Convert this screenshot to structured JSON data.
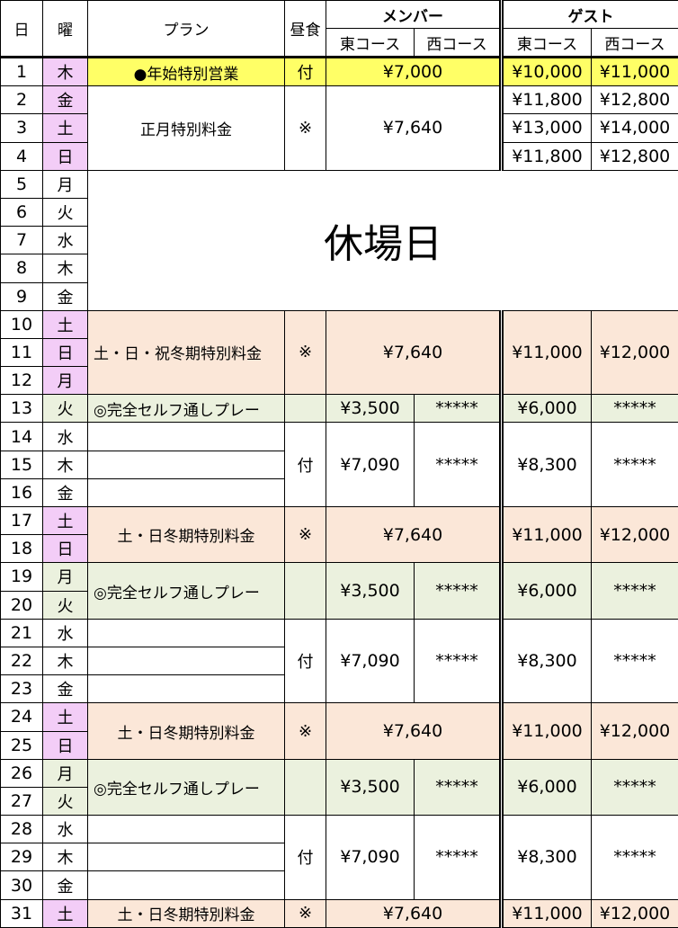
{
  "header": {
    "day": "日",
    "weekday": "曜",
    "plan": "プラン",
    "lunch": "昼食",
    "member": "メンバー",
    "guest": "ゲスト",
    "east": "東コース",
    "west": "西コース"
  },
  "colors": {
    "yellow": "#ffff66",
    "peach": "#fbe7d8",
    "green": "#ebf1de",
    "lavender": "#f3cdf7"
  },
  "days": [
    {
      "d": "1",
      "w": "木",
      "bg": "lav"
    },
    {
      "d": "2",
      "w": "金",
      "bg": "lav"
    },
    {
      "d": "3",
      "w": "土",
      "bg": "lav"
    },
    {
      "d": "4",
      "w": "日",
      "bg": "lav"
    },
    {
      "d": "5",
      "w": "月",
      "bg": "wht"
    },
    {
      "d": "6",
      "w": "火",
      "bg": "wht"
    },
    {
      "d": "7",
      "w": "水",
      "bg": "wht"
    },
    {
      "d": "8",
      "w": "木",
      "bg": "wht"
    },
    {
      "d": "9",
      "w": "金",
      "bg": "wht"
    },
    {
      "d": "10",
      "w": "土",
      "bg": "lav"
    },
    {
      "d": "11",
      "w": "日",
      "bg": "lav"
    },
    {
      "d": "12",
      "w": "月",
      "bg": "lav"
    },
    {
      "d": "13",
      "w": "火",
      "bg": "grn"
    },
    {
      "d": "14",
      "w": "水",
      "bg": "wht"
    },
    {
      "d": "15",
      "w": "木",
      "bg": "wht"
    },
    {
      "d": "16",
      "w": "金",
      "bg": "wht"
    },
    {
      "d": "17",
      "w": "土",
      "bg": "lav"
    },
    {
      "d": "18",
      "w": "日",
      "bg": "lav"
    },
    {
      "d": "19",
      "w": "月",
      "bg": "grn"
    },
    {
      "d": "20",
      "w": "火",
      "bg": "grn"
    },
    {
      "d": "21",
      "w": "水",
      "bg": "wht"
    },
    {
      "d": "22",
      "w": "木",
      "bg": "wht"
    },
    {
      "d": "23",
      "w": "金",
      "bg": "wht"
    },
    {
      "d": "24",
      "w": "土",
      "bg": "lav"
    },
    {
      "d": "25",
      "w": "日",
      "bg": "lav"
    },
    {
      "d": "26",
      "w": "月",
      "bg": "grn"
    },
    {
      "d": "27",
      "w": "火",
      "bg": "grn"
    },
    {
      "d": "28",
      "w": "水",
      "bg": "wht"
    },
    {
      "d": "29",
      "w": "木",
      "bg": "wht"
    },
    {
      "d": "30",
      "w": "金",
      "bg": "wht"
    },
    {
      "d": "31",
      "w": "土",
      "bg": "lav"
    }
  ],
  "segments": [
    {
      "type": "special",
      "span": 1,
      "bg": "yel",
      "plan": "●年始特別営業",
      "lunch": "付",
      "member": "¥7,000",
      "guest": [
        [
          "¥10,000",
          "¥11,000"
        ]
      ]
    },
    {
      "type": "special",
      "span": 3,
      "bg": "wht",
      "plan": "正月特別料金",
      "lunch": "※",
      "member": "¥7,640",
      "guest": [
        [
          "¥11,800",
          "¥12,800"
        ],
        [
          "¥13,000",
          "¥14,000"
        ],
        [
          "¥11,800",
          "¥12,800"
        ]
      ]
    },
    {
      "type": "closed",
      "span": 5,
      "label": "休場日"
    },
    {
      "type": "weekend",
      "span": 3,
      "bg": "pea",
      "plan": "土・日・祝冬期特別料金",
      "lunch": "※",
      "member": "¥7,640",
      "guest_east": "¥11,000",
      "guest_west": "¥12,000"
    },
    {
      "type": "self",
      "span": 1,
      "bg": "grn",
      "plan": "◎完全セルフ通しプレー",
      "lunch": "",
      "member_east": "¥3,500",
      "member_west": "*****",
      "guest_east": "¥6,000",
      "guest_west": "*****"
    },
    {
      "type": "weekday",
      "span": 3,
      "bg": "wht",
      "lunch": "付",
      "member_east": "¥7,090",
      "member_west": "*****",
      "guest_east": "¥8,300",
      "guest_west": "*****"
    },
    {
      "type": "weekend",
      "span": 2,
      "bg": "pea",
      "plan": "土・日冬期特別料金",
      "lunch": "※",
      "member": "¥7,640",
      "guest_east": "¥11,000",
      "guest_west": "¥12,000",
      "center": true
    },
    {
      "type": "self",
      "span": 2,
      "bg": "grn",
      "plan": "◎完全セルフ通しプレー",
      "lunch": "",
      "member_east": "¥3,500",
      "member_west": "*****",
      "guest_east": "¥6,000",
      "guest_west": "*****"
    },
    {
      "type": "weekday",
      "span": 3,
      "bg": "wht",
      "lunch": "付",
      "member_east": "¥7,090",
      "member_west": "*****",
      "guest_east": "¥8,300",
      "guest_west": "*****"
    },
    {
      "type": "weekend",
      "span": 2,
      "bg": "pea",
      "plan": "土・日冬期特別料金",
      "lunch": "※",
      "member": "¥7,640",
      "guest_east": "¥11,000",
      "guest_west": "¥12,000",
      "center": true
    },
    {
      "type": "self",
      "span": 2,
      "bg": "grn",
      "plan": "◎完全セルフ通しプレー",
      "lunch": "",
      "member_east": "¥3,500",
      "member_west": "*****",
      "guest_east": "¥6,000",
      "guest_west": "*****"
    },
    {
      "type": "weekday",
      "span": 3,
      "bg": "wht",
      "lunch": "付",
      "member_east": "¥7,090",
      "member_west": "*****",
      "guest_east": "¥8,300",
      "guest_west": "*****"
    },
    {
      "type": "weekend",
      "span": 1,
      "bg": "pea",
      "plan": "土・日冬期特別料金",
      "lunch": "※",
      "member": "¥7,640",
      "guest_east": "¥11,000",
      "guest_west": "¥12,000",
      "center": true
    }
  ]
}
